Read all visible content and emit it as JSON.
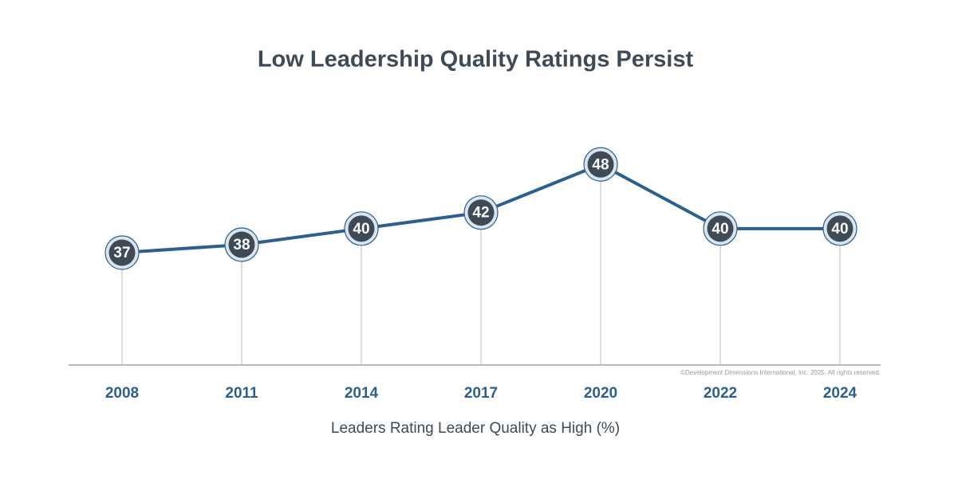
{
  "chart_data": {
    "type": "line",
    "title": "Low Leadership Quality Ratings Persist",
    "x_label": "Leaders Rating Leader Quality as High (%)",
    "note": "©Development Dimensions International, Inc. 2025. All rights reserved.",
    "categories": [
      "2008",
      "2011",
      "2014",
      "2017",
      "2020",
      "2022",
      "2024"
    ],
    "values": [
      37,
      38,
      40,
      42,
      48,
      40,
      40
    ],
    "color": "#2b5f8e",
    "ylim": [
      23,
      52
    ]
  }
}
